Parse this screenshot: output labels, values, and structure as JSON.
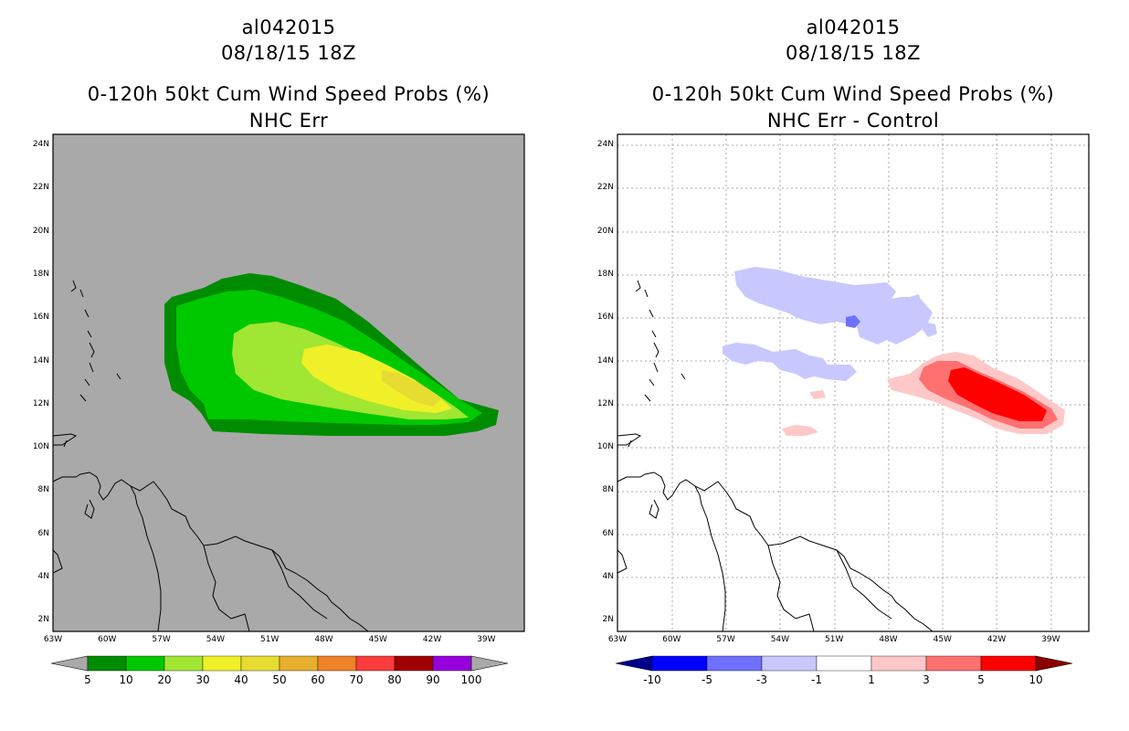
{
  "left_panel": {
    "storm_id": "al042015",
    "datetime": "08/18/15 18Z",
    "product": "0-120h 50kt Cum Wind Speed Probs (%)",
    "subtitle": "NHC Err",
    "background_color": "#a9a9a9",
    "colorbar": {
      "labels": [
        "5",
        "10",
        "20",
        "30",
        "40",
        "50",
        "60",
        "70",
        "80",
        "90",
        "100"
      ],
      "colors": [
        "#008c00",
        "#00c800",
        "#a0e632",
        "#f0f028",
        "#e6dc32",
        "#e6af2d",
        "#f08228",
        "#fa3c3c",
        "#a00000",
        "#9600dc"
      ],
      "end_color": "#a9a9a9"
    }
  },
  "right_panel": {
    "storm_id": "al042015",
    "datetime": "08/18/15 18Z",
    "product": "0-120h 50kt Cum Wind Speed Probs (%)",
    "subtitle": "NHC Err - Control",
    "background_color": "#ffffff",
    "colorbar": {
      "labels": [
        "-10",
        "-5",
        "-3",
        "-1",
        "1",
        "3",
        "5",
        "10"
      ],
      "colors": [
        "#0000ff",
        "#7070ff",
        "#c8c8ff",
        "#ffffff",
        "#ffc8c8",
        "#ff7070",
        "#ff0000"
      ],
      "low_end_color": "#00008c",
      "high_end_color": "#8c0000"
    }
  },
  "map": {
    "lat_labels": [
      "24N",
      "22N",
      "20N",
      "18N",
      "16N",
      "14N",
      "12N",
      "10N",
      "8N",
      "6N",
      "4N",
      "2N"
    ],
    "lon_labels": [
      "63W",
      "60W",
      "57W",
      "54W",
      "51W",
      "48W",
      "45W",
      "42W",
      "39W"
    ]
  }
}
